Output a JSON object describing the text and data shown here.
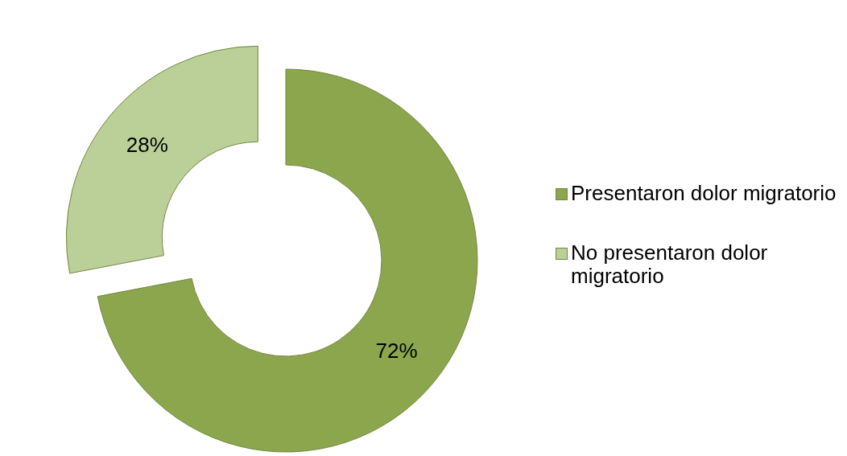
{
  "chart_data": {
    "type": "donut",
    "categories": [
      "Presentaron dolor migratorio",
      "No presentaron dolor migratorio"
    ],
    "values": [
      72,
      28
    ],
    "colors": [
      "#8ba64d",
      "#bbd098"
    ],
    "value_labels": [
      "72%",
      "28%"
    ],
    "legend": "right"
  }
}
